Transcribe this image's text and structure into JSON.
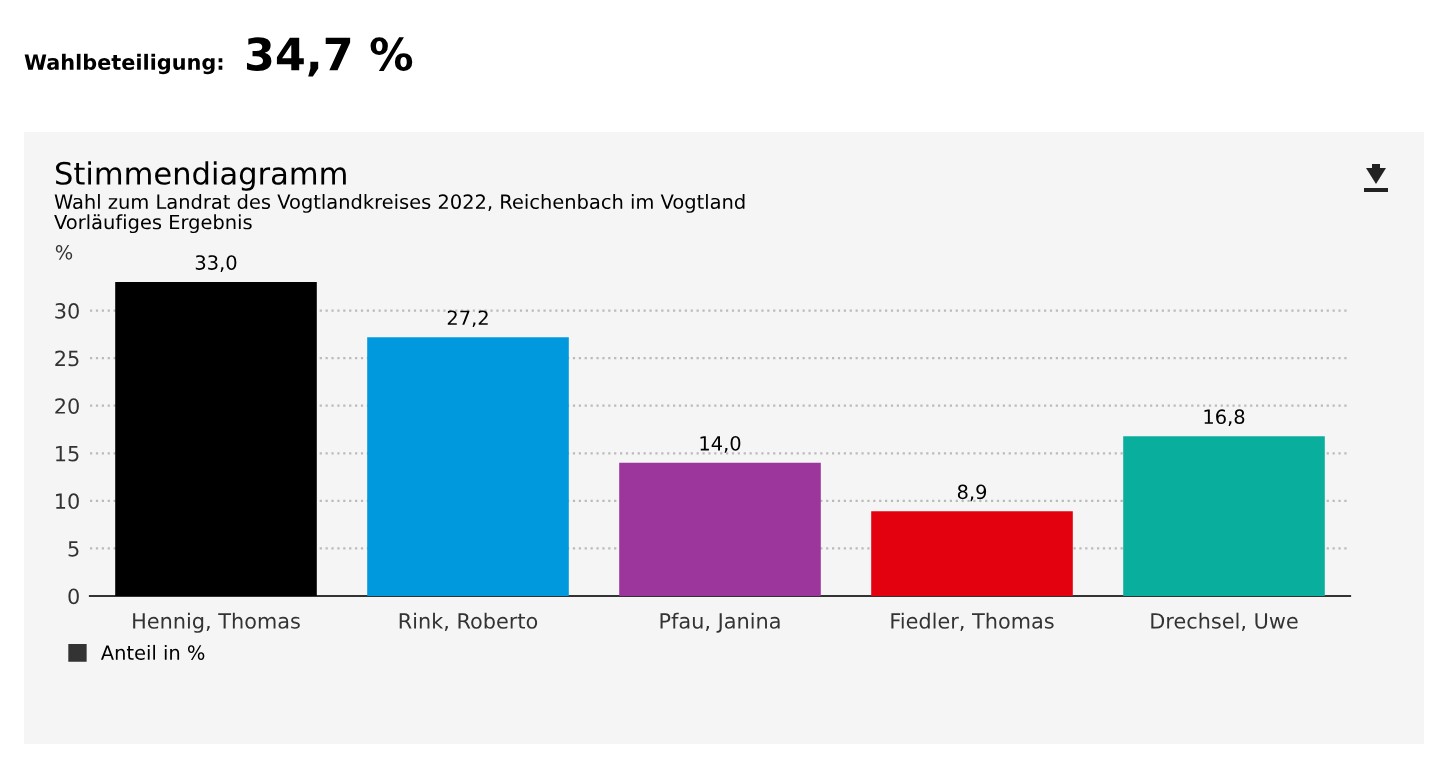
{
  "chart_data": {
    "type": "bar",
    "title": "Stimmendiagramm",
    "subtitle": "Wahl zum Landrat des Vogtlandkreises 2022, Reichenbach im Vogtland\nVorläufiges Ergebnis",
    "ylabel": "%",
    "annotations": [
      "Wahlbeteiligung:",
      "34,7 %"
    ],
    "categories": [
      "Hennig, Thomas",
      "Rink, Roberto",
      "Pfau, Janina",
      "Fiedler, Thomas",
      "Drechsel, Uwe"
    ],
    "series": [
      {
        "name": "Anteil in %",
        "colors": [
          "#000000",
          "#0099dd",
          "#9c369c",
          "#e3000f",
          "#0aae9c"
        ],
        "values": [
          33.0,
          27.2,
          14.0,
          8.9,
          16.8
        ],
        "value_labels": [
          "33,0",
          "27,2",
          "14,0",
          "8,9",
          "16,8"
        ]
      }
    ],
    "ylim": [
      0,
      33
    ],
    "yticks": [
      0,
      5,
      10,
      15,
      20,
      25,
      30
    ],
    "grid": "y",
    "legend": "bottom left"
  }
}
